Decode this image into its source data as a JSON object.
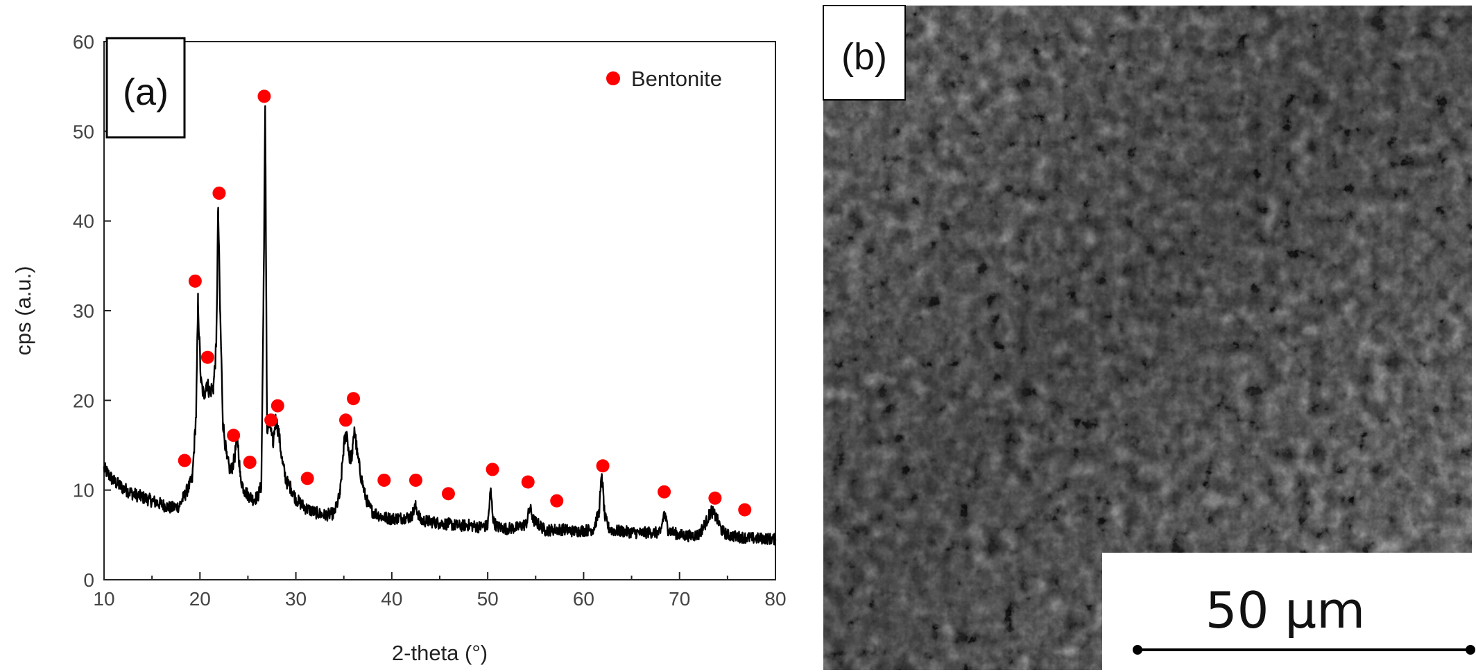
{
  "panel_a_label": "(a)",
  "panel_b_label": "(b)",
  "scale_bar_label": "50 μm",
  "colors": {
    "pattern_line": "#000000",
    "peak_marker": "#ff0000",
    "sem_background": "#3c3c3c"
  },
  "chart_data": {
    "type": "line",
    "xlabel": "2-theta (°)",
    "ylabel": "cps (a.u.)",
    "xlim": [
      10,
      80
    ],
    "ylim": [
      0,
      60
    ],
    "x_ticks": [
      10,
      20,
      30,
      40,
      50,
      60,
      70,
      80
    ],
    "y_ticks": [
      0,
      10,
      20,
      30,
      40,
      50,
      60
    ],
    "grid": false,
    "legend": {
      "placement": "top-right",
      "entries": [
        "Bentonite"
      ]
    },
    "series": [
      {
        "x": [
          10,
          11,
          12,
          13,
          14,
          15,
          16,
          17,
          17.8,
          18.5,
          19.2,
          19.6,
          19.8,
          20.1,
          20.4,
          20.7,
          21.0,
          21.4,
          21.7,
          21.9,
          22.1,
          22.4,
          22.8,
          23.2,
          23.6,
          23.9,
          24.2,
          24.6,
          25.0,
          25.5,
          26.0,
          26.4,
          26.6,
          26.8,
          27.0,
          27.3,
          27.6,
          27.9,
          28.2,
          28.6,
          29.0,
          29.5,
          30.0,
          31.0,
          32.0,
          33.0,
          34.0,
          34.6,
          35.0,
          35.3,
          35.6,
          35.9,
          36.1,
          36.4,
          36.8,
          37.2,
          37.6,
          38.0,
          39.0,
          40.0,
          41.0,
          42.0,
          42.5,
          43.0,
          44.0,
          45.0,
          46.0,
          47.0,
          48.0,
          49.0,
          50.0,
          50.3,
          50.6,
          51.0,
          52.0,
          53.0,
          54.0,
          54.4,
          54.8,
          55.5,
          56.0,
          57.0,
          58.0,
          59.0,
          60.0,
          61.0,
          61.6,
          61.9,
          62.2,
          62.6,
          63.0,
          64.0,
          65.0,
          66.0,
          67.0,
          68.0,
          68.4,
          68.8,
          69.5,
          70.0,
          71.0,
          72.0,
          72.8,
          73.3,
          73.8,
          74.4,
          75.0,
          76.0,
          77.0,
          78.0,
          79.0,
          80.0
        ],
        "y": [
          12.4,
          11.0,
          10.2,
          9.6,
          9.2,
          8.8,
          8.4,
          8.0,
          8.2,
          9.6,
          11.2,
          18.5,
          31.0,
          22.0,
          20.5,
          22.0,
          21.0,
          21.5,
          26.0,
          41.5,
          30.0,
          17.5,
          13.5,
          12.0,
          13.5,
          16.2,
          11.5,
          10.0,
          9.5,
          9.0,
          9.2,
          10.5,
          29.0,
          52.0,
          16.5,
          17.5,
          15.0,
          18.0,
          16.5,
          13.0,
          11.0,
          10.2,
          9.0,
          8.0,
          7.5,
          7.2,
          7.4,
          9.5,
          15.0,
          16.5,
          13.5,
          14.0,
          17.0,
          14.0,
          11.5,
          9.5,
          8.2,
          7.6,
          7.0,
          6.8,
          6.9,
          7.0,
          8.2,
          6.6,
          6.5,
          6.3,
          6.2,
          6.0,
          6.1,
          5.9,
          6.0,
          10.0,
          6.5,
          5.9,
          5.7,
          5.8,
          6.2,
          8.0,
          6.6,
          6.0,
          5.5,
          5.6,
          5.6,
          5.4,
          5.5,
          5.6,
          7.5,
          11.8,
          7.0,
          5.8,
          5.5,
          5.4,
          5.3,
          5.2,
          5.3,
          5.2,
          7.5,
          5.6,
          5.2,
          5.0,
          4.9,
          5.0,
          6.5,
          7.7,
          7.0,
          5.5,
          5.0,
          4.8,
          4.7,
          4.6,
          4.6,
          4.5
        ]
      }
    ],
    "bentonite_peaks": {
      "x": [
        18.4,
        19.5,
        20.8,
        22.0,
        23.5,
        25.2,
        26.7,
        27.4,
        28.1,
        31.2,
        35.2,
        36.0,
        39.2,
        42.5,
        45.9,
        50.5,
        54.2,
        57.2,
        62.0,
        68.4,
        73.7,
        76.8
      ],
      "y": [
        13.3,
        33.3,
        24.8,
        43.1,
        16.1,
        13.1,
        53.9,
        17.8,
        19.4,
        11.3,
        17.8,
        20.2,
        11.1,
        11.1,
        9.6,
        12.3,
        10.9,
        8.8,
        12.7,
        9.8,
        9.1,
        7.8
      ]
    }
  }
}
